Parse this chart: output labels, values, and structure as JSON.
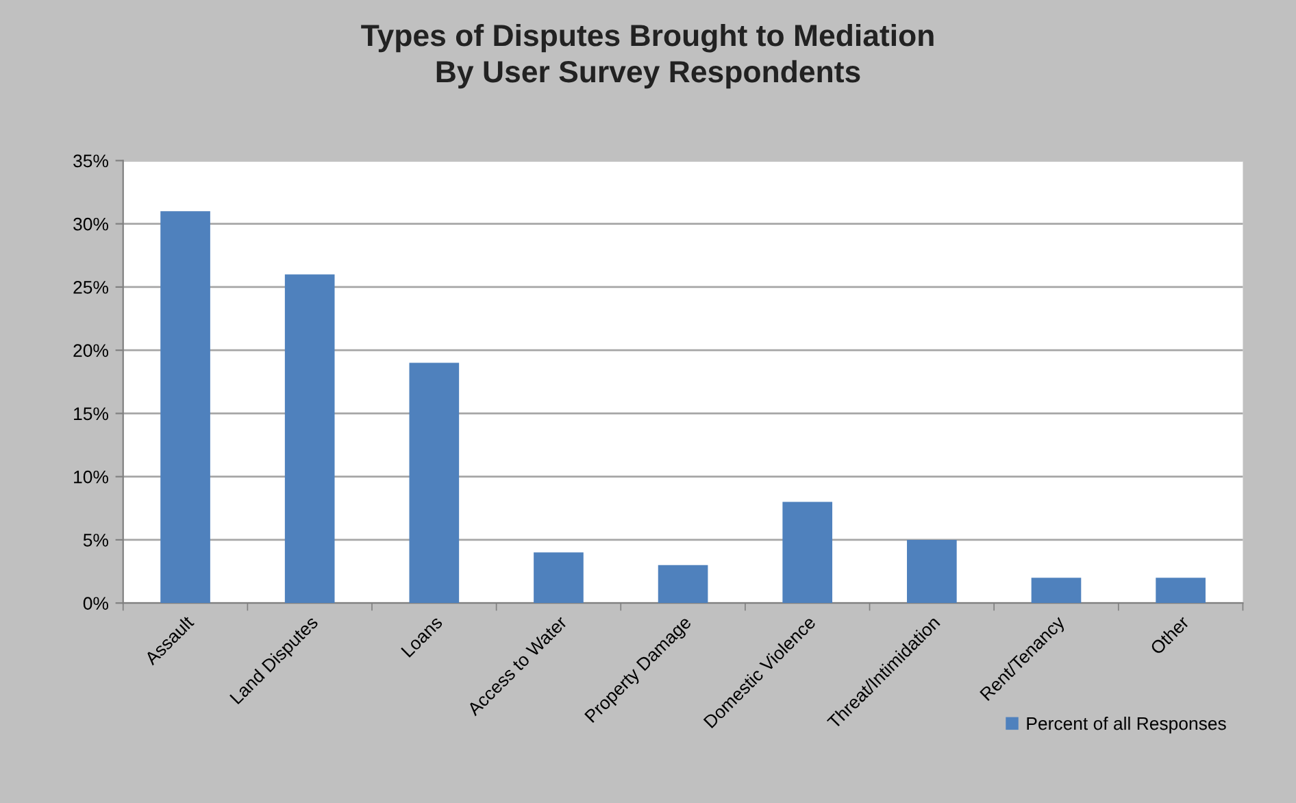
{
  "chart_data": {
    "type": "bar",
    "title": "Types of Disputes Brought to Mediation\nBy User Survey Respondents",
    "categories": [
      "Assault",
      "Land Disputes",
      "Loans",
      "Access to Water",
      "Property Damage",
      "Domestic Violence",
      "Threat/Intimidation",
      "Rent/Tenancy",
      "Other"
    ],
    "series": [
      {
        "name": "Percent of all Responses",
        "color": "#4f81bd",
        "values": [
          31,
          26,
          19,
          4,
          3,
          8,
          5,
          2,
          2
        ]
      }
    ],
    "ylim": [
      0,
      35
    ],
    "yticks": [
      {
        "value": 0,
        "label": "0%"
      },
      {
        "value": 5,
        "label": "5%"
      },
      {
        "value": 10,
        "label": "10%"
      },
      {
        "value": 15,
        "label": "15%"
      },
      {
        "value": 20,
        "label": "20%"
      },
      {
        "value": 25,
        "label": "25%"
      },
      {
        "value": 30,
        "label": "30%"
      },
      {
        "value": 35,
        "label": "35%"
      }
    ],
    "grid": "y",
    "legend": "bottom right"
  }
}
